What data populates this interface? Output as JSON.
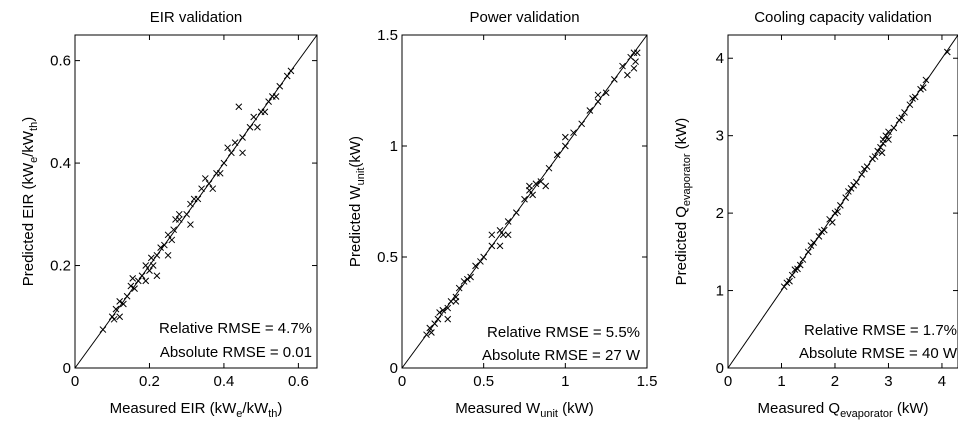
{
  "chart_data": [
    {
      "type": "scatter",
      "title": "EIR validation",
      "xlabel": {
        "main": "Measured EIR (kW",
        "sub1": "e",
        "mid": "/kW",
        "sub2": "th",
        "end": ")"
      },
      "ylabel": {
        "main": "Predicted EIR (kW",
        "sub1": "e",
        "mid": "/kW",
        "sub2": "th",
        "end": ")"
      },
      "xlim": [
        0,
        0.65
      ],
      "ylim": [
        0,
        0.65
      ],
      "xticks": [
        0,
        0.2,
        0.4,
        0.6
      ],
      "xtick_labels": [
        "0",
        "0.2",
        "0.4",
        "0.6"
      ],
      "yticks": [
        0,
        0.2,
        0.4,
        0.6
      ],
      "ytick_labels": [
        "0",
        "0.2",
        "0.4",
        "0.6"
      ],
      "annotations": [
        "Relative RMSE = 4.7%",
        "Absolute RMSE = 0.01"
      ],
      "identity_line": true,
      "grid": false,
      "marker": "x",
      "series": [
        {
          "points": [
            [
              0.075,
              0.075
            ],
            [
              0.1,
              0.1
            ],
            [
              0.105,
              0.095
            ],
            [
              0.11,
              0.115
            ],
            [
              0.12,
              0.13
            ],
            [
              0.13,
              0.125
            ],
            [
              0.14,
              0.14
            ],
            [
              0.15,
              0.16
            ],
            [
              0.16,
              0.155
            ],
            [
              0.17,
              0.17
            ],
            [
              0.18,
              0.18
            ],
            [
              0.19,
              0.2
            ],
            [
              0.2,
              0.19
            ],
            [
              0.205,
              0.215
            ],
            [
              0.21,
              0.2
            ],
            [
              0.22,
              0.22
            ],
            [
              0.23,
              0.235
            ],
            [
              0.24,
              0.24
            ],
            [
              0.25,
              0.26
            ],
            [
              0.26,
              0.25
            ],
            [
              0.265,
              0.27
            ],
            [
              0.28,
              0.29
            ],
            [
              0.3,
              0.3
            ],
            [
              0.31,
              0.32
            ],
            [
              0.33,
              0.33
            ],
            [
              0.34,
              0.35
            ],
            [
              0.36,
              0.36
            ],
            [
              0.38,
              0.38
            ],
            [
              0.4,
              0.4
            ],
            [
              0.42,
              0.42
            ],
            [
              0.43,
              0.44
            ],
            [
              0.45,
              0.45
            ],
            [
              0.47,
              0.47
            ],
            [
              0.48,
              0.49
            ],
            [
              0.5,
              0.5
            ],
            [
              0.52,
              0.52
            ],
            [
              0.53,
              0.53
            ],
            [
              0.55,
              0.55
            ],
            [
              0.57,
              0.57
            ],
            [
              0.58,
              0.58
            ],
            [
              0.22,
              0.18
            ],
            [
              0.25,
              0.22
            ],
            [
              0.28,
              0.3
            ],
            [
              0.31,
              0.28
            ],
            [
              0.35,
              0.37
            ],
            [
              0.37,
              0.35
            ],
            [
              0.44,
              0.51
            ],
            [
              0.45,
              0.42
            ],
            [
              0.49,
              0.47
            ],
            [
              0.51,
              0.5
            ],
            [
              0.54,
              0.53
            ],
            [
              0.12,
              0.1
            ],
            [
              0.155,
              0.175
            ],
            [
              0.19,
              0.17
            ],
            [
              0.27,
              0.29
            ],
            [
              0.32,
              0.33
            ],
            [
              0.39,
              0.38
            ],
            [
              0.41,
              0.43
            ]
          ]
        }
      ]
    },
    {
      "type": "scatter",
      "title": "Power validation",
      "xlabel": {
        "main": "Measured W",
        "sub1": "unit",
        "end": " (kW)"
      },
      "ylabel": {
        "main": "Predicted W",
        "sub1": "unit",
        "end": "(kW)"
      },
      "xlim": [
        0,
        1.5
      ],
      "ylim": [
        0,
        1.5
      ],
      "xticks": [
        0,
        0.5,
        1,
        1.5
      ],
      "xtick_labels": [
        "0",
        "0.5",
        "1",
        "1.5"
      ],
      "yticks": [
        0,
        0.5,
        1,
        1.5
      ],
      "ytick_labels": [
        "0",
        "0.5",
        "1",
        "1.5"
      ],
      "annotations": [
        "Relative RMSE = 5.5%",
        "Absolute RMSE = 27 W"
      ],
      "identity_line": true,
      "grid": false,
      "marker": "x",
      "series": [
        {
          "points": [
            [
              0.15,
              0.15
            ],
            [
              0.17,
              0.18
            ],
            [
              0.2,
              0.2
            ],
            [
              0.22,
              0.22
            ],
            [
              0.25,
              0.26
            ],
            [
              0.28,
              0.27
            ],
            [
              0.3,
              0.3
            ],
            [
              0.33,
              0.32
            ],
            [
              0.35,
              0.36
            ],
            [
              0.38,
              0.39
            ],
            [
              0.4,
              0.4
            ],
            [
              0.42,
              0.41
            ],
            [
              0.45,
              0.46
            ],
            [
              0.5,
              0.5
            ],
            [
              0.55,
              0.55
            ],
            [
              0.6,
              0.62
            ],
            [
              0.62,
              0.6
            ],
            [
              0.65,
              0.66
            ],
            [
              0.7,
              0.7
            ],
            [
              0.75,
              0.76
            ],
            [
              0.78,
              0.8
            ],
            [
              0.8,
              0.78
            ],
            [
              0.82,
              0.83
            ],
            [
              0.85,
              0.84
            ],
            [
              0.9,
              0.9
            ],
            [
              0.95,
              0.96
            ],
            [
              1.0,
              1.0
            ],
            [
              1.05,
              1.06
            ],
            [
              1.1,
              1.1
            ],
            [
              1.15,
              1.16
            ],
            [
              1.2,
              1.2
            ],
            [
              1.25,
              1.24
            ],
            [
              1.3,
              1.3
            ],
            [
              1.35,
              1.36
            ],
            [
              1.4,
              1.4
            ],
            [
              1.42,
              1.42
            ],
            [
              1.43,
              1.38
            ],
            [
              1.44,
              1.42
            ],
            [
              0.6,
              0.55
            ],
            [
              0.65,
              0.6
            ],
            [
              0.88,
              0.82
            ],
            [
              1.0,
              1.04
            ],
            [
              0.28,
              0.22
            ],
            [
              0.33,
              0.3
            ],
            [
              0.55,
              0.6
            ],
            [
              1.38,
              1.32
            ],
            [
              1.42,
              1.35
            ],
            [
              0.78,
              0.82
            ],
            [
              0.18,
              0.16
            ],
            [
              0.23,
              0.25
            ],
            [
              0.48,
              0.48
            ],
            [
              1.2,
              1.23
            ]
          ]
        }
      ]
    },
    {
      "type": "scatter",
      "title": "Cooling capacity validation",
      "xlabel": {
        "main": "Measured Q",
        "sub1": "evaporator",
        "end": " (kW)"
      },
      "ylabel": {
        "main": "Predicted Q",
        "sub1": "evaporator",
        "end": " (kW)"
      },
      "xlim": [
        0,
        4.3
      ],
      "ylim": [
        0,
        4.3
      ],
      "xticks": [
        0,
        1,
        2,
        3,
        4
      ],
      "xtick_labels": [
        "0",
        "1",
        "2",
        "3",
        "4"
      ],
      "yticks": [
        0,
        1,
        2,
        3,
        4
      ],
      "ytick_labels": [
        "0",
        "1",
        "2",
        "3",
        "4"
      ],
      "annotations": [
        "Relative RMSE = 1.7%",
        "Absolute RMSE = 40 W"
      ],
      "identity_line": true,
      "grid": false,
      "marker": "x",
      "series": [
        {
          "points": [
            [
              1.05,
              1.05
            ],
            [
              1.1,
              1.1
            ],
            [
              1.2,
              1.2
            ],
            [
              1.25,
              1.27
            ],
            [
              1.3,
              1.28
            ],
            [
              1.4,
              1.4
            ],
            [
              1.5,
              1.5
            ],
            [
              1.6,
              1.62
            ],
            [
              1.7,
              1.7
            ],
            [
              1.8,
              1.78
            ],
            [
              1.9,
              1.92
            ],
            [
              2.0,
              2.0
            ],
            [
              2.1,
              2.1
            ],
            [
              2.2,
              2.2
            ],
            [
              2.3,
              2.32
            ],
            [
              2.4,
              2.4
            ],
            [
              2.5,
              2.5
            ],
            [
              2.6,
              2.6
            ],
            [
              2.7,
              2.7
            ],
            [
              2.8,
              2.8
            ],
            [
              2.85,
              2.85
            ],
            [
              2.9,
              2.9
            ],
            [
              2.95,
              3.0
            ],
            [
              3.0,
              3.05
            ],
            [
              3.1,
              3.1
            ],
            [
              3.2,
              3.2
            ],
            [
              3.3,
              3.3
            ],
            [
              3.4,
              3.4
            ],
            [
              3.5,
              3.5
            ],
            [
              3.6,
              3.6
            ],
            [
              3.65,
              3.62
            ],
            [
              3.7,
              3.72
            ],
            [
              4.1,
              4.08
            ],
            [
              1.15,
              1.12
            ],
            [
              1.35,
              1.33
            ],
            [
              1.55,
              1.58
            ],
            [
              2.05,
              2.02
            ],
            [
              2.25,
              2.28
            ],
            [
              2.75,
              2.73
            ],
            [
              2.88,
              2.78
            ],
            [
              2.9,
              2.95
            ],
            [
              3.0,
              2.95
            ],
            [
              3.25,
              3.23
            ],
            [
              3.45,
              3.48
            ],
            [
              1.95,
              1.88
            ],
            [
              2.55,
              2.57
            ],
            [
              2.35,
              2.36
            ],
            [
              1.75,
              1.76
            ]
          ]
        }
      ]
    }
  ]
}
